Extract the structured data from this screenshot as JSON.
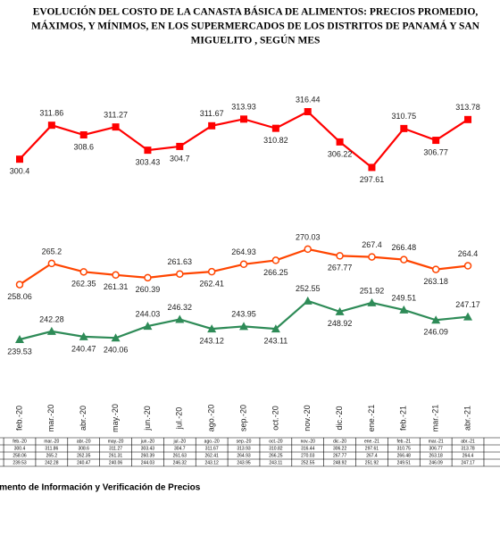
{
  "chart_data": {
    "type": "line",
    "title_lines": [
      "EVOLUCIÓN DEL COSTO DE LA CANASTA BÁSICA DE ALIMENTOS: PRECIOS PROMEDIO,",
      "MÁXIMOS, Y MÍNIMOS, EN LOS SUPERMERCADOS DE LOS DISTRITOS DE PANAMÁ Y SAN",
      "MIGUELITO , SEGÚN MES"
    ],
    "categories": [
      "feb.-20",
      "mar.-20",
      "abr.-20",
      "may.-20",
      "jun.-20",
      "jul.-20",
      "ago.-20",
      "sep.-20",
      "oct.-20",
      "nov.-20",
      "dic.-20",
      "ene.-21",
      "feb.-21",
      "mar.-21",
      "abr.-21"
    ],
    "series": [
      {
        "color": "#ff0000",
        "marker": "square",
        "values": [
          300.4,
          311.86,
          308.6,
          311.27,
          303.43,
          304.7,
          311.67,
          313.93,
          310.82,
          316.44,
          306.22,
          297.61,
          310.75,
          306.77,
          313.78
        ]
      },
      {
        "color": "#ff4500",
        "marker": "circle",
        "values": [
          258.06,
          265.2,
          262.35,
          261.31,
          260.39,
          261.63,
          262.41,
          264.93,
          266.25,
          270.03,
          267.77,
          267.4,
          266.48,
          263.18,
          264.4
        ]
      },
      {
        "color": "#2e8b57",
        "marker": "triangle",
        "values": [
          239.53,
          242.28,
          240.47,
          240.06,
          244.03,
          246.32,
          243.12,
          243.95,
          243.11,
          252.55,
          248.92,
          251.92,
          249.51,
          246.09,
          247.17
        ]
      }
    ],
    "footer": "Departamento de Información y Verificación de Precios"
  }
}
